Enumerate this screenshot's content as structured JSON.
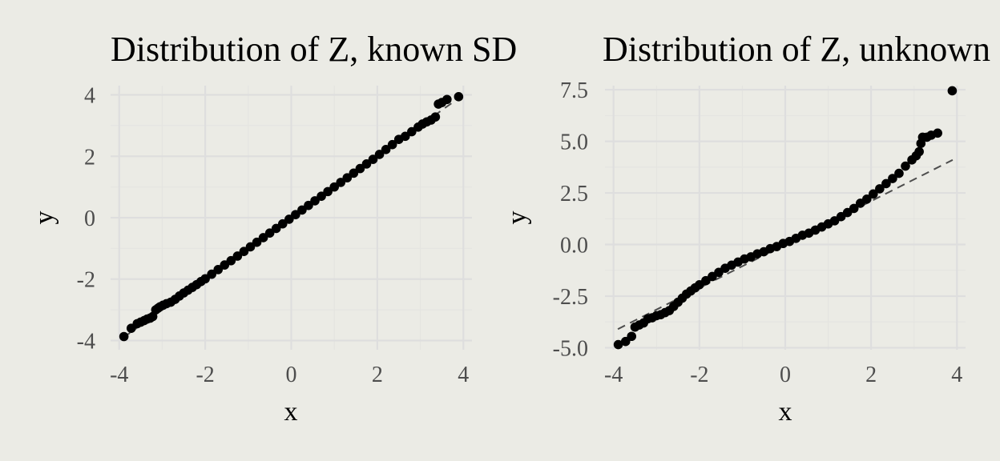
{
  "chart_data": [
    {
      "type": "scatter",
      "title": "Distribution of Z, known SD",
      "xlabel": "x",
      "ylabel": "y",
      "xlim": [
        -4.2,
        4.2
      ],
      "ylim": [
        -4.3,
        4.3
      ],
      "xticks": [
        -4,
        -2,
        0,
        2,
        4
      ],
      "xtick_labels": [
        "-4",
        "-2",
        "0",
        "2",
        "4"
      ],
      "yticks": [
        -4,
        -2,
        0,
        2,
        4
      ],
      "ytick_labels": [
        "-4",
        "-2",
        "0",
        "2",
        "4"
      ],
      "grid": true,
      "reference_line": {
        "style": "dashed",
        "color": "#4d4d4d",
        "x": [
          -3.9,
          3.9
        ],
        "y": [
          -3.9,
          3.9
        ]
      },
      "series": [
        {
          "color": "#000000",
          "x": [
            -3.89,
            -3.72,
            -3.58,
            -3.5,
            -3.42,
            -3.35,
            -3.28,
            -3.22,
            -3.15,
            -3.1,
            -3.05,
            -2.98,
            -2.9,
            -2.8,
            -2.7,
            -2.6,
            -2.5,
            -2.4,
            -2.3,
            -2.2,
            -2.1,
            -2.0,
            -1.85,
            -1.7,
            -1.55,
            -1.4,
            -1.25,
            -1.1,
            -0.95,
            -0.8,
            -0.65,
            -0.5,
            -0.35,
            -0.2,
            -0.05,
            0.1,
            0.25,
            0.4,
            0.55,
            0.7,
            0.85,
            1.0,
            1.15,
            1.3,
            1.45,
            1.6,
            1.75,
            1.9,
            2.05,
            2.2,
            2.35,
            2.5,
            2.65,
            2.8,
            2.95,
            3.05,
            3.15,
            3.25,
            3.35,
            3.42,
            3.5,
            3.62,
            3.89
          ],
          "y": [
            -3.87,
            -3.6,
            -3.45,
            -3.4,
            -3.35,
            -3.3,
            -3.27,
            -3.22,
            -3.0,
            -2.95,
            -2.9,
            -2.85,
            -2.8,
            -2.75,
            -2.66,
            -2.55,
            -2.45,
            -2.36,
            -2.27,
            -2.18,
            -2.08,
            -1.99,
            -1.84,
            -1.69,
            -1.54,
            -1.4,
            -1.25,
            -1.1,
            -0.95,
            -0.8,
            -0.65,
            -0.5,
            -0.35,
            -0.2,
            -0.05,
            0.1,
            0.25,
            0.4,
            0.55,
            0.7,
            0.85,
            1.0,
            1.15,
            1.3,
            1.45,
            1.6,
            1.75,
            1.9,
            2.06,
            2.22,
            2.38,
            2.55,
            2.65,
            2.8,
            2.95,
            3.05,
            3.12,
            3.18,
            3.28,
            3.7,
            3.75,
            3.85,
            3.94
          ]
        }
      ]
    },
    {
      "type": "scatter",
      "title": "Distribution of Z, unknown SD",
      "xlabel": "x",
      "ylabel": "y",
      "xlim": [
        -4.2,
        4.2
      ],
      "ylim": [
        -5.1,
        7.7
      ],
      "xticks": [
        -4,
        -2,
        0,
        2,
        4
      ],
      "xtick_labels": [
        "-4",
        "-2",
        "0",
        "2",
        "4"
      ],
      "yticks": [
        -5,
        -2.5,
        0,
        2.5,
        5,
        7.5
      ],
      "ytick_labels": [
        "-5.0",
        "-2.5",
        "0.0",
        "2.5",
        "5.0",
        "7.5"
      ],
      "grid": true,
      "reference_line": {
        "style": "dashed",
        "color": "#4d4d4d",
        "x": [
          -3.9,
          3.9
        ],
        "y": [
          -4.1,
          4.1
        ]
      },
      "series": [
        {
          "color": "#000000",
          "x": [
            -3.89,
            -3.72,
            -3.58,
            -3.5,
            -3.4,
            -3.3,
            -3.2,
            -3.1,
            -3.0,
            -2.9,
            -2.8,
            -2.7,
            -2.6,
            -2.5,
            -2.4,
            -2.3,
            -2.2,
            -2.1,
            -2.0,
            -1.85,
            -1.7,
            -1.55,
            -1.4,
            -1.25,
            -1.1,
            -0.95,
            -0.8,
            -0.65,
            -0.5,
            -0.35,
            -0.2,
            -0.05,
            0.1,
            0.25,
            0.4,
            0.55,
            0.7,
            0.85,
            1.0,
            1.15,
            1.3,
            1.45,
            1.6,
            1.75,
            1.9,
            2.05,
            2.2,
            2.35,
            2.5,
            2.65,
            2.8,
            2.95,
            3.05,
            3.12,
            3.16,
            3.2,
            3.3,
            3.4,
            3.55,
            3.89
          ],
          "y": [
            -4.85,
            -4.7,
            -4.45,
            -4.0,
            -3.9,
            -3.8,
            -3.6,
            -3.55,
            -3.45,
            -3.4,
            -3.3,
            -3.2,
            -3.0,
            -2.8,
            -2.6,
            -2.4,
            -2.25,
            -2.1,
            -1.95,
            -1.75,
            -1.55,
            -1.35,
            -1.15,
            -1.0,
            -0.85,
            -0.7,
            -0.6,
            -0.45,
            -0.35,
            -0.2,
            -0.1,
            0.05,
            0.15,
            0.3,
            0.45,
            0.55,
            0.7,
            0.85,
            1.0,
            1.15,
            1.35,
            1.55,
            1.75,
            2.0,
            2.2,
            2.45,
            2.7,
            2.95,
            3.2,
            3.45,
            3.8,
            4.1,
            4.3,
            4.5,
            4.9,
            5.2,
            5.2,
            5.3,
            5.4,
            7.45
          ]
        }
      ]
    }
  ]
}
